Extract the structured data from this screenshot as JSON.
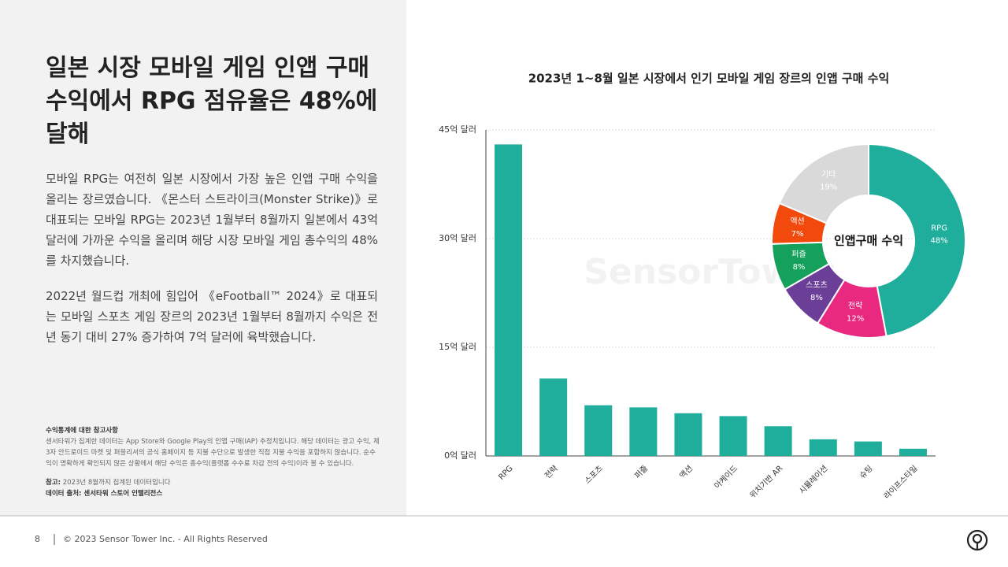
{
  "header": {
    "title": "일본 시장 모바일 게임 인앱 구매 수익에서 RPG 점유율은 48%에 달해"
  },
  "body": {
    "paragraphs": [
      "모바일 RPG는 여전히 일본 시장에서 가장 높은 인앱 구매 수익을 올리는 장르였습니다. 《몬스터 스트라이크(Monster Strike)》로 대표되는 모바일 RPG는 2023년 1월부터 8월까지 일본에서 43억 달러에 가까운 수익을 올리며 해당 시장 모바일 게임 총수익의 48%를 차지했습니다.",
      "2022년 월드컵 개최에 힘입어 《eFootball™ 2024》로 대표되는 모바일 스포츠 게임 장르의 2023년 1월부터 8월까지 수익은 전년 동기 대비 27% 증가하여 7억 달러에 육박했습니다."
    ]
  },
  "notes": {
    "heading": "수익통계에 대한 참고사항",
    "text": "센서타워가 집계한 데이터는 App Store와 Google Play의 인앱 구매(IAP) 추정치입니다. 해당 데이터는 광고 수익, 제3자 안드로이드 마켓 및 퍼블리셔의 공식 홈페이지 등 지불 수단으로 발생한 직접 지불 수익을 포함하지 않습니다. 순수익이 명확하게 확인되지 않은 상황에서 해당 수익은 총수익(플랫폼 수수료 차감 전의 수익)이라 볼 수 있습니다.",
    "reference_label": "참고:",
    "reference": "2023년 8월까지 집계된 데이터입니다",
    "source": "데이터 출처: 센서타워 스토어 인텔리전스"
  },
  "footer": {
    "page": 8,
    "copyright": "© 2023 Sensor Tower Inc. - All Rights Reserved"
  },
  "watermark": "SensorTower",
  "chart_data": [
    {
      "type": "bar",
      "title": "2023년 1~8월 일본 시장에서 인기 모바일 게임 장르의 인앱 구매 수익",
      "categories": [
        "RPG",
        "전략",
        "스포츠",
        "퍼즐",
        "액션",
        "아케이드",
        "위치기반 AR",
        "시뮬레이션",
        "슈팅",
        "라이프스타일"
      ],
      "values": [
        43,
        10.7,
        7.0,
        6.7,
        5.9,
        5.5,
        4.1,
        2.3,
        2.0,
        1.0
      ],
      "color": "#1fae9c",
      "ylim": [
        0,
        45
      ],
      "yticks": [
        {
          "value": 0,
          "label": "0억 달러"
        },
        {
          "value": 15,
          "label": "15억 달러"
        },
        {
          "value": 30,
          "label": "30억 달러"
        },
        {
          "value": 45,
          "label": "45억 달러"
        }
      ],
      "grid": true
    },
    {
      "type": "pie",
      "title": "인앱구매 수익",
      "categories": [
        "RPG",
        "전략",
        "스포츠",
        "퍼즐",
        "액션",
        "기타"
      ],
      "values": [
        48,
        12,
        8,
        8,
        7,
        19
      ],
      "value_labels": [
        "48%",
        "12%",
        "8%",
        "8%",
        "7%",
        "19%"
      ],
      "colors": [
        "#1fae9c",
        "#e8297f",
        "#6b3f98",
        "#15a15c",
        "#f24a0c",
        "#d9d9d9"
      ]
    }
  ]
}
